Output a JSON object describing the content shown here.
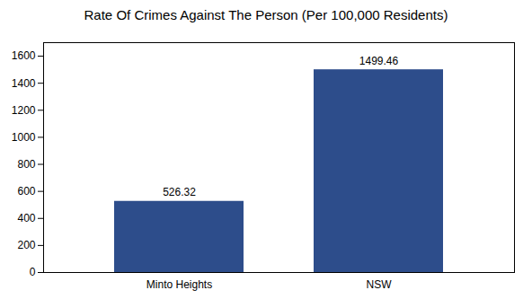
{
  "chart_data": {
    "type": "bar",
    "title": "Rate Of Crimes Against The Person (Per 100,000 Residents)",
    "categories": [
      "Minto Heights",
      "NSW"
    ],
    "values": [
      526.32,
      1499.46
    ],
    "color": "#2d4d8b",
    "ylim": [
      0,
      1700
    ],
    "yticks": [
      0,
      200,
      400,
      600,
      800,
      1000,
      1200,
      1400,
      1600
    ],
    "grid": false,
    "data_labels": true
  }
}
